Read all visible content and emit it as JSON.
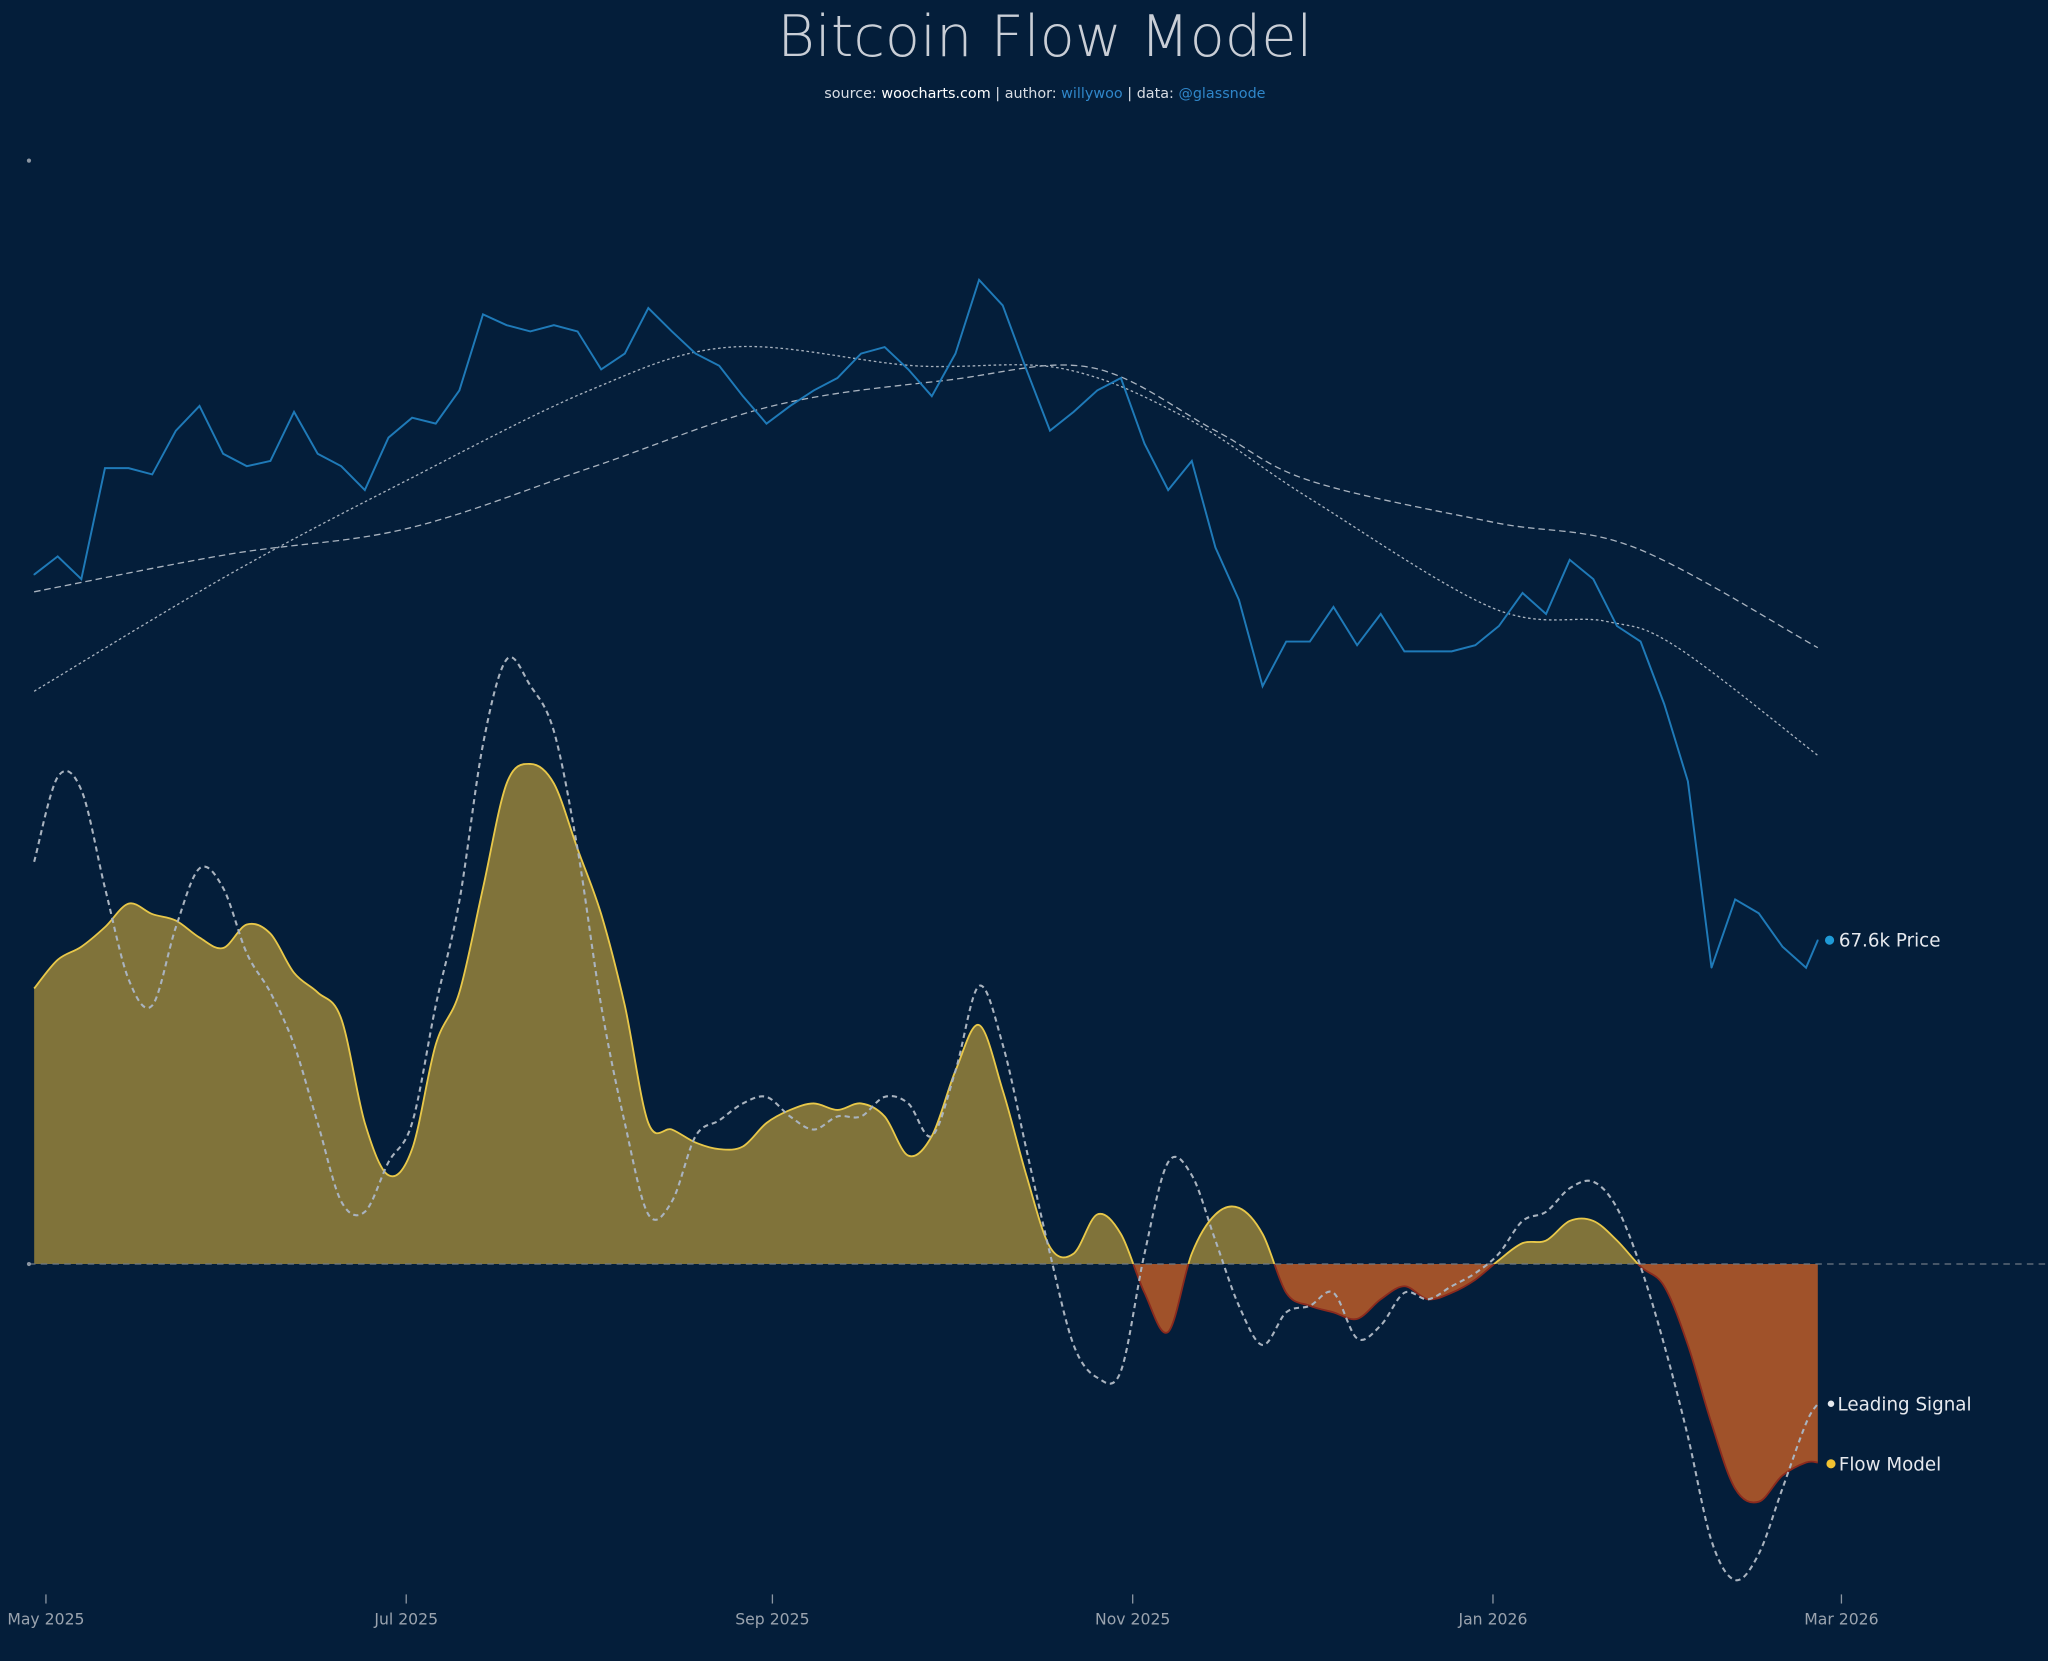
{
  "chart_data": {
    "type": "line",
    "title": "Bitcoin Flow Model",
    "subtitle": {
      "source_label": "source:",
      "source": "woocharts.com",
      "author_label": "| author:",
      "author": "willywoo",
      "data_label": "| data:",
      "data": "@glassnode"
    },
    "x_axis": {
      "type": "date",
      "ticks": [
        {
          "date": "2025-05-01",
          "label": "May 2025"
        },
        {
          "date": "2025-07-01",
          "label": "Jul 2025"
        },
        {
          "date": "2025-09-01",
          "label": "Sep 2025"
        },
        {
          "date": "2025-11-01",
          "label": "Nov 2025"
        },
        {
          "date": "2026-01-01",
          "label": "Jan 2026"
        },
        {
          "date": "2026-03-01",
          "label": "Mar 2026"
        }
      ]
    },
    "price_scale": "log",
    "grid": false,
    "colors": {
      "background": "#041e3a",
      "price": "#1f7ab8",
      "flow_positive_fill": "#80733a",
      "flow_positive_line": "#e8c84a",
      "flow_negative_fill": "#a0522a",
      "flow_negative_line": "#8a2a1e",
      "leading_signal": "#a9b3bf",
      "moving_average": "#a9b3bf",
      "zero_line": "#6d7885",
      "author_link": "#2f86c9"
    },
    "dates": [
      "2025-04-29",
      "2025-05-03",
      "2025-05-07",
      "2025-05-11",
      "2025-05-15",
      "2025-05-19",
      "2025-05-23",
      "2025-05-27",
      "2025-05-31",
      "2025-06-04",
      "2025-06-08",
      "2025-06-12",
      "2025-06-16",
      "2025-06-20",
      "2025-06-24",
      "2025-06-28",
      "2025-07-02",
      "2025-07-06",
      "2025-07-10",
      "2025-07-14",
      "2025-07-18",
      "2025-07-22",
      "2025-07-26",
      "2025-07-30",
      "2025-08-03",
      "2025-08-07",
      "2025-08-11",
      "2025-08-15",
      "2025-08-19",
      "2025-08-23",
      "2025-08-27",
      "2025-08-31",
      "2025-09-04",
      "2025-09-08",
      "2025-09-12",
      "2025-09-16",
      "2025-09-20",
      "2025-09-24",
      "2025-09-28",
      "2025-10-02",
      "2025-10-06",
      "2025-10-10",
      "2025-10-14",
      "2025-10-18",
      "2025-10-22",
      "2025-10-26",
      "2025-10-30",
      "2025-11-03",
      "2025-11-07",
      "2025-11-11",
      "2025-11-15",
      "2025-11-19",
      "2025-11-23",
      "2025-11-27",
      "2025-12-01",
      "2025-12-05",
      "2025-12-09",
      "2025-12-13",
      "2025-12-17",
      "2025-12-21",
      "2025-12-25",
      "2025-12-29",
      "2026-01-02",
      "2026-01-06",
      "2026-01-10",
      "2026-01-14",
      "2026-01-18",
      "2026-01-22",
      "2026-01-26",
      "2026-01-30",
      "2026-02-03",
      "2026-02-07",
      "2026-02-11",
      "2026-02-15",
      "2026-02-19",
      "2026-02-23",
      "2026-02-25"
    ],
    "series": [
      {
        "name": "Price",
        "unit": "USD thousands",
        "values": [
          94.8,
          96.4,
          94.4,
          104.6,
          104.6,
          104.0,
          108.3,
          110.8,
          106.0,
          104.8,
          105.3,
          110.2,
          106.0,
          104.8,
          102.5,
          107.6,
          109.6,
          109.0,
          112.4,
          120.6,
          119.4,
          118.7,
          119.4,
          118.7,
          114.6,
          116.3,
          121.3,
          118.7,
          116.3,
          115.0,
          111.8,
          109.0,
          110.8,
          112.4,
          113.7,
          116.3,
          117.0,
          114.6,
          111.8,
          116.3,
          124.5,
          121.6,
          114.6,
          108.3,
          110.2,
          112.4,
          113.7,
          107.0,
          102.5,
          105.3,
          97.2,
          92.6,
          85.5,
          89.1,
          89.1,
          92.0,
          88.8,
          91.4,
          88.3,
          88.3,
          88.3,
          88.8,
          90.4,
          93.2,
          91.4,
          96.1,
          94.4,
          90.4,
          89.1,
          84.1,
          78.3,
          65.9,
          70.2,
          69.3,
          67.2,
          65.9,
          67.6
        ],
        "last_label": "67.6k Price"
      },
      {
        "name": "Flow Model",
        "values": [
          2.11,
          2.33,
          2.43,
          2.58,
          2.76,
          2.68,
          2.63,
          2.5,
          2.42,
          2.6,
          2.53,
          2.23,
          2.08,
          1.88,
          1.08,
          0.68,
          0.88,
          1.68,
          2.08,
          2.88,
          3.68,
          3.83,
          3.68,
          3.18,
          2.68,
          1.98,
          1.08,
          1.03,
          0.93,
          0.88,
          0.9,
          1.08,
          1.18,
          1.23,
          1.18,
          1.23,
          1.13,
          0.83,
          0.98,
          1.48,
          1.83,
          1.33,
          0.68,
          0.13,
          0.08,
          0.38,
          0.23,
          -0.22,
          -0.52,
          0.08,
          0.38,
          0.43,
          0.23,
          -0.22,
          -0.32,
          -0.37,
          -0.42,
          -0.27,
          -0.17,
          -0.27,
          -0.22,
          -0.12,
          0.03,
          0.16,
          0.18,
          0.33,
          0.33,
          0.18,
          -0.02,
          -0.17,
          -0.62,
          -1.22,
          -1.72,
          -1.82,
          -1.62,
          -1.52,
          -1.52
        ]
      },
      {
        "name": "Leading Signal",
        "values": [
          3.08,
          3.73,
          3.63,
          2.88,
          2.18,
          1.98,
          2.58,
          3.03,
          2.88,
          2.38,
          2.08,
          1.68,
          1.08,
          0.48,
          0.4,
          0.78,
          1.08,
          1.98,
          2.78,
          3.98,
          4.63,
          4.43,
          4.08,
          3.18,
          1.98,
          1.08,
          0.38,
          0.48,
          0.98,
          1.1,
          1.23,
          1.28,
          1.13,
          1.03,
          1.13,
          1.13,
          1.28,
          1.23,
          0.98,
          1.48,
          2.13,
          1.68,
          0.88,
          0.08,
          -0.62,
          -0.87,
          -0.82,
          0.08,
          0.78,
          0.68,
          0.18,
          -0.32,
          -0.62,
          -0.37,
          -0.32,
          -0.22,
          -0.57,
          -0.47,
          -0.22,
          -0.27,
          -0.17,
          -0.07,
          0.08,
          0.33,
          0.4,
          0.58,
          0.63,
          0.43,
          -0.02,
          -0.62,
          -1.32,
          -2.12,
          -2.42,
          -2.22,
          -1.72,
          -1.22,
          -1.07
        ]
      }
    ],
    "moving_averages": [
      {
        "style": "dotted",
        "points": [
          [
            "2025-04-29",
            85.1
          ],
          [
            "2025-06-01",
            94.8
          ],
          [
            "2025-07-01",
            103.4
          ],
          [
            "2025-08-01",
            112.4
          ],
          [
            "2025-08-25",
            117.0
          ],
          [
            "2025-09-25",
            115.0
          ],
          [
            "2025-10-20",
            114.7
          ],
          [
            "2025-11-10",
            109.6
          ],
          [
            "2025-12-01",
            101.7
          ],
          [
            "2026-01-01",
            91.9
          ],
          [
            "2026-01-20",
            90.8
          ],
          [
            "2026-02-01",
            88.7
          ],
          [
            "2026-02-25",
            80.2
          ]
        ]
      },
      {
        "style": "dashed",
        "points": [
          [
            "2025-04-29",
            93.3
          ],
          [
            "2025-06-01",
            96.6
          ],
          [
            "2025-07-01",
            98.9
          ],
          [
            "2025-08-01",
            104.6
          ],
          [
            "2025-09-01",
            110.8
          ],
          [
            "2025-10-01",
            113.5
          ],
          [
            "2025-10-25",
            114.8
          ],
          [
            "2025-11-15",
            108.3
          ],
          [
            "2025-12-01",
            103.4
          ],
          [
            "2026-01-01",
            99.5
          ],
          [
            "2026-01-25",
            97.2
          ],
          [
            "2026-02-25",
            88.6
          ]
        ]
      }
    ],
    "legend": {
      "placement": "right-end-labels",
      "leading_signal": "Leading Signal",
      "flow_model": "Flow Model"
    }
  }
}
